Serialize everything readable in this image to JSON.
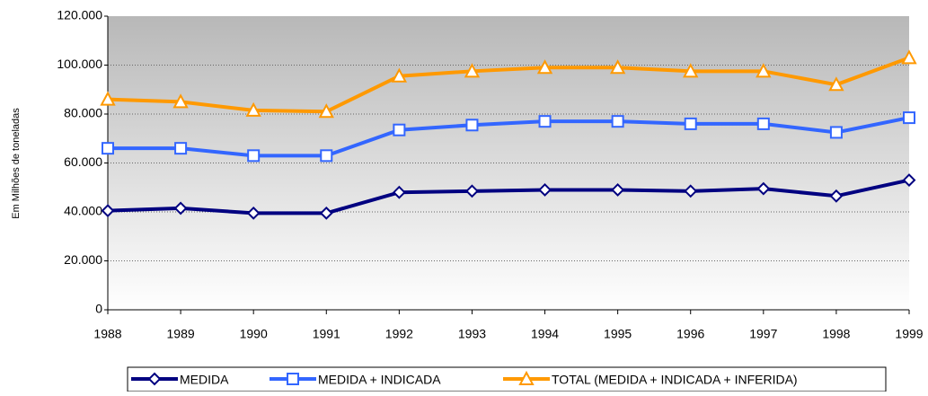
{
  "chart_data": {
    "type": "line",
    "y_label": "Em Milhões de toneladas",
    "x": [
      1988,
      1989,
      1990,
      1991,
      1992,
      1993,
      1994,
      1995,
      1996,
      1997,
      1998,
      1999
    ],
    "xlim": [
      1988,
      1999
    ],
    "xticks": [
      1988,
      1989,
      1990,
      1991,
      1992,
      1993,
      1994,
      1995,
      1996,
      1997,
      1998,
      1999
    ],
    "ylim": [
      0,
      120000
    ],
    "yticks": [
      0,
      {
        "value": 20000,
        "label": "20.000"
      },
      {
        "value": 40000,
        "label": "40.000"
      },
      {
        "value": 60000,
        "label": "60.000"
      },
      {
        "value": 80000,
        "label": "80.000"
      },
      {
        "value": 100000,
        "label": "100.000"
      },
      {
        "value": 120000,
        "label": "120.000"
      }
    ],
    "grid": true,
    "series": [
      {
        "name": "MEDIDA",
        "color": "#000080",
        "marker": "diamond",
        "values": [
          40500,
          41500,
          39500,
          39500,
          48000,
          48500,
          49000,
          49000,
          48500,
          49500,
          46500,
          53000
        ]
      },
      {
        "name": "MEDIDA + INDICADA",
        "color": "#3366ff",
        "marker": "square",
        "values": [
          66000,
          66000,
          63000,
          63000,
          73500,
          75500,
          77000,
          77000,
          76000,
          76000,
          72500,
          78500
        ]
      },
      {
        "name": "TOTAL (MEDIDA + INDICADA + INFERIDA)",
        "color": "#ff9900",
        "marker": "triangle",
        "values": [
          86000,
          85000,
          81500,
          81000,
          95500,
          97500,
          99000,
          99000,
          97500,
          97500,
          92000,
          103000
        ]
      }
    ]
  }
}
